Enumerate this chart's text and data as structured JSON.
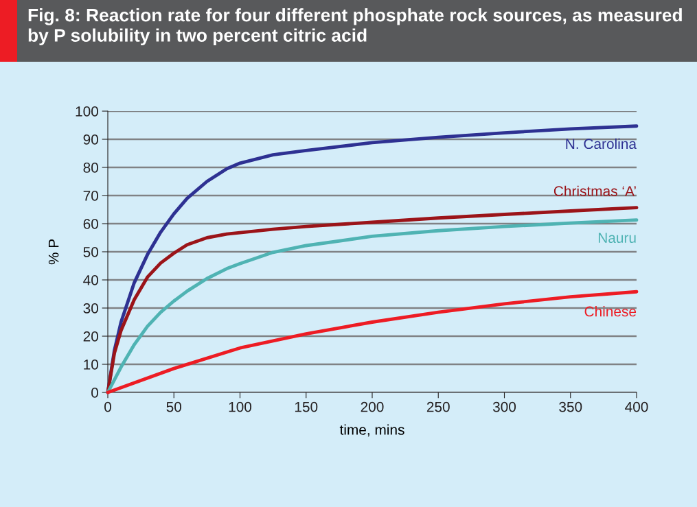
{
  "chart_data": {
    "type": "line",
    "title": "Fig. 8: Reaction rate for four different phosphate rock sources, as measured by P solubility in two percent citric acid",
    "xlabel": "time, mins",
    "ylabel": "% P",
    "xlim": [
      0,
      400
    ],
    "xticks": [
      0,
      50,
      100,
      150,
      200,
      250,
      300,
      350,
      400
    ],
    "ylim": [
      0,
      100
    ],
    "yticks": [
      0,
      10,
      20,
      30,
      40,
      50,
      60,
      70,
      80,
      90,
      100
    ],
    "grid": "y",
    "legend": false,
    "marker": "none",
    "line_style": "solid",
    "series": [
      {
        "name": "N. Carolina",
        "color": "#2e3192",
        "x": [
          0,
          5,
          10,
          20,
          30,
          40,
          50,
          60,
          75,
          90,
          100,
          125,
          150,
          200,
          250,
          300,
          350,
          400
        ],
        "values": [
          0,
          15,
          25,
          39,
          49,
          57,
          63.5,
          69,
          75,
          79.5,
          81.5,
          84.5,
          86,
          88.8,
          90.7,
          92.3,
          93.7,
          94.7
        ]
      },
      {
        "name": "Christmas ‘A’",
        "color": "#9b1419",
        "x": [
          0,
          5,
          10,
          20,
          30,
          40,
          50,
          60,
          75,
          90,
          100,
          125,
          150,
          200,
          250,
          300,
          350,
          400
        ],
        "values": [
          0,
          14,
          22,
          33,
          41,
          46,
          49.5,
          52.5,
          55,
          56.3,
          56.8,
          58,
          59,
          60.5,
          62,
          63.3,
          64.5,
          65.7
        ]
      },
      {
        "name": "Nauru",
        "color": "#4fb3b3",
        "x": [
          0,
          10,
          20,
          30,
          40,
          50,
          60,
          75,
          90,
          100,
          125,
          150,
          200,
          250,
          300,
          350,
          400
        ],
        "values": [
          0,
          9,
          17,
          23.5,
          28.5,
          32.5,
          36,
          40.5,
          44,
          45.8,
          49.8,
          52.2,
          55.5,
          57.5,
          59,
          60.2,
          61.3
        ]
      },
      {
        "name": "Chinese",
        "color": "#ed1c24",
        "x": [
          0,
          50,
          100,
          150,
          200,
          250,
          300,
          350,
          400
        ],
        "values": [
          0,
          8.5,
          15.8,
          20.8,
          25,
          28.5,
          31.5,
          34,
          35.8
        ]
      }
    ]
  }
}
